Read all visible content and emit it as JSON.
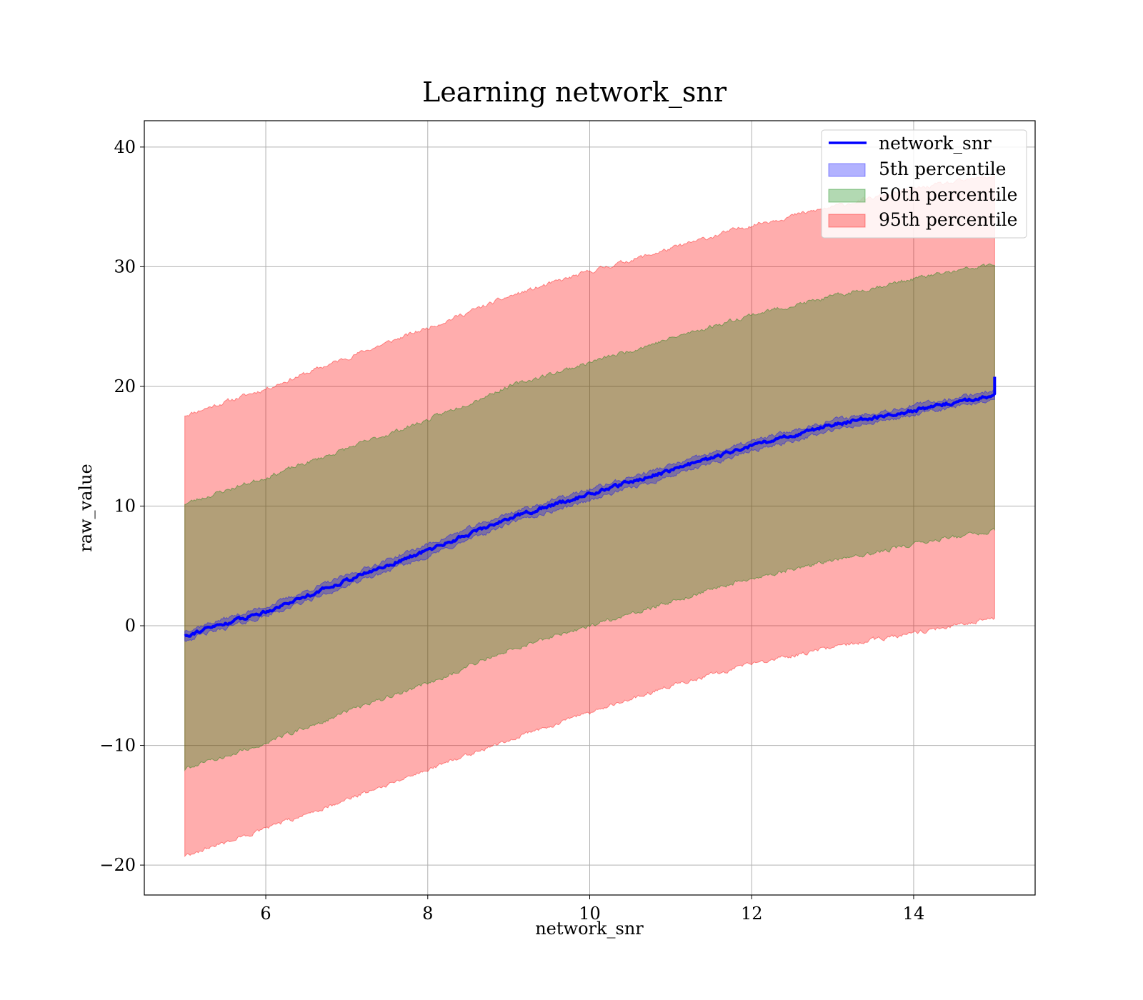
{
  "chart_data": {
    "type": "area",
    "title": "Learning network_snr",
    "xlabel": "network_snr",
    "ylabel": "raw_value",
    "xlim": [
      4.5,
      15.5
    ],
    "ylim": [
      -22.5,
      42.2
    ],
    "xticks": [
      6,
      8,
      10,
      12,
      14
    ],
    "yticks": [
      -20,
      -10,
      0,
      10,
      20,
      30,
      40
    ],
    "xtick_labels": [
      "6",
      "8",
      "10",
      "12",
      "14"
    ],
    "ytick_labels": [
      "−20",
      "−10",
      "0",
      "10",
      "20",
      "30",
      "40"
    ],
    "grid": true,
    "legend": {
      "placement": "top-right",
      "entries": [
        "network_snr",
        "5th percentile",
        "50th percentile",
        "95th percentile"
      ]
    },
    "colors": {
      "line": "#0000ff",
      "band_5": "#0000ff",
      "band_50": "#008000",
      "band_95": "#ff0000"
    },
    "x": [
      5.0,
      6.0,
      7.0,
      8.0,
      9.0,
      10.0,
      11.0,
      12.0,
      13.0,
      14.0,
      15.0
    ],
    "series": [
      {
        "name": "network_snr",
        "kind": "line",
        "values": [
          -0.8,
          1.2,
          3.8,
          6.3,
          9.0,
          11.0,
          13.0,
          15.0,
          16.8,
          18.0,
          19.3
        ]
      },
      {
        "name": "5th percentile",
        "kind": "band",
        "lower": [
          -1.2,
          0.8,
          3.3,
          5.8,
          8.5,
          10.5,
          12.5,
          14.6,
          16.3,
          17.6,
          18.9
        ],
        "upper": [
          -0.4,
          1.6,
          4.2,
          6.8,
          9.4,
          11.4,
          13.4,
          15.4,
          17.2,
          18.4,
          19.7
        ]
      },
      {
        "name": "50th percentile",
        "kind": "band",
        "lower": [
          -12.0,
          -9.8,
          -7.2,
          -4.8,
          -2.0,
          0.0,
          2.0,
          4.0,
          5.4,
          6.8,
          8.0
        ],
        "upper": [
          10.2,
          12.4,
          14.8,
          17.2,
          20.0,
          22.0,
          24.0,
          26.0,
          27.5,
          29.0,
          30.2
        ]
      },
      {
        "name": "95th percentile",
        "kind": "band",
        "lower": [
          -19.2,
          -17.0,
          -14.5,
          -12.0,
          -9.5,
          -7.3,
          -5.0,
          -3.2,
          -1.8,
          -0.6,
          0.6
        ],
        "upper": [
          17.6,
          19.8,
          22.4,
          24.9,
          27.5,
          29.6,
          31.5,
          33.5,
          35.0,
          36.5,
          37.6
        ]
      }
    ]
  }
}
